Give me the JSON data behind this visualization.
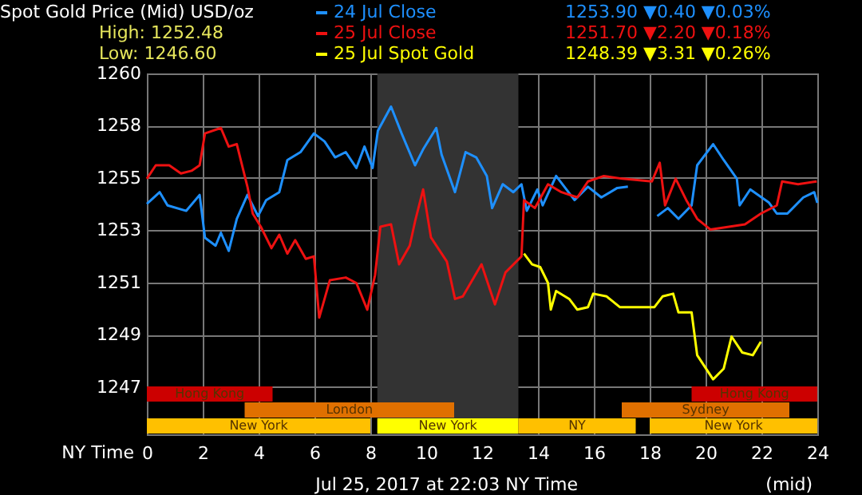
{
  "chart_data": {
    "type": "line",
    "title": "Spot Gold Price (Mid) USD/oz",
    "xlabel": "NY Time",
    "xlim": [
      0,
      24
    ],
    "xticks": [
      0,
      2,
      4,
      6,
      8,
      10,
      12,
      14,
      16,
      18,
      20,
      22,
      24
    ],
    "ylim": [
      1245.1,
      1259.6
    ],
    "yticks": [
      {
        "value": 1247,
        "label": "1247"
      },
      {
        "value": 1249.1,
        "label": "1249"
      },
      {
        "value": 1251.2,
        "label": "1251"
      },
      {
        "value": 1253.3,
        "label": "1253"
      },
      {
        "value": 1255.4,
        "label": "1255"
      },
      {
        "value": 1257.5,
        "label": "1258"
      },
      {
        "value": 1259.6,
        "label": "1260"
      }
    ],
    "grid": true,
    "legend": "top",
    "marker": "none",
    "line_style": "solid",
    "series": [
      {
        "name": "24 Jul Close",
        "color": "#1e90ff",
        "x": [
          0,
          0.46,
          0.74,
          1.41,
          1.89,
          2.08,
          2.46,
          2.65,
          2.93,
          3.22,
          3.6,
          3.98,
          4.27,
          4.74,
          5.03,
          5.5,
          5.98,
          6.36,
          6.74,
          7.12,
          7.5,
          7.79,
          8.08,
          8.27,
          8.74,
          9.12,
          9.6,
          9.89,
          10.36,
          10.55,
          11.03,
          11.41,
          11.79,
          12.17,
          12.36,
          12.74,
          13.12,
          13.41,
          13.6,
          13.98,
          14.17,
          14.65,
          15.31,
          15.79,
          16.27,
          16.84,
          17.22,
          17.7,
          18.27,
          18.65,
          19.03,
          19.5,
          19.7,
          20.27,
          20.65,
          21.12,
          21.22,
          21.6,
          22.27,
          22.55,
          22.93,
          23.5,
          23.89,
          24
        ],
        "values": [
          1254.36,
          1254.83,
          1254.3,
          1254.08,
          1254.72,
          1253.0,
          1252.68,
          1253.2,
          1252.47,
          1253.76,
          1254.72,
          1253.87,
          1254.51,
          1254.83,
          1256.12,
          1256.44,
          1257.19,
          1256.87,
          1256.23,
          1256.44,
          1255.8,
          1256.66,
          1255.8,
          1257.3,
          1258.27,
          1257.19,
          1255.91,
          1256.55,
          1257.41,
          1256.34,
          1254.83,
          1256.44,
          1256.23,
          1255.48,
          1254.19,
          1255.15,
          1254.83,
          1255.15,
          1254.08,
          1254.94,
          1254.3,
          1255.48,
          1254.51,
          1255.05,
          1254.62,
          1255.0,
          1255.05,
          null,
          1253.87,
          1254.19,
          1253.76,
          1254.3,
          1255.91,
          1256.76,
          1256.12,
          1255.37,
          1254.3,
          1254.94,
          1254.41,
          1253.97,
          1253.97,
          1254.62,
          1254.83,
          1254.4
        ]
      },
      {
        "name": "25 Jul Close",
        "color": "#ee1111",
        "x": [
          0,
          0.32,
          0.8,
          1.22,
          1.6,
          1.89,
          2.08,
          2.65,
          2.93,
          3.22,
          3.6,
          3.79,
          4.08,
          4.46,
          4.74,
          5.03,
          5.31,
          5.69,
          5.98,
          6.17,
          6.55,
          7.12,
          7.5,
          7.89,
          8.17,
          8.36,
          8.74,
          9.03,
          9.41,
          9.6,
          9.89,
          10.17,
          10.74,
          11.03,
          11.31,
          11.98,
          12.46,
          12.84,
          13.41,
          13.5,
          13.89,
          14.36,
          14.84,
          15.41,
          15.79,
          16.36,
          17.03,
          18.08,
          18.36,
          18.55,
          18.93,
          19.31,
          19.7,
          20.17,
          20.84,
          21.41,
          21.98,
          22.55,
          22.74,
          23.31,
          23.98
        ],
        "values": [
          1255.37,
          1255.91,
          1255.91,
          1255.58,
          1255.69,
          1255.91,
          1257.19,
          1257.41,
          1256.66,
          1256.76,
          1255.05,
          1253.97,
          1253.44,
          1252.58,
          1253.12,
          1252.36,
          1252.9,
          1252.15,
          1252.25,
          1249.79,
          1251.29,
          1251.4,
          1251.18,
          1250.11,
          1251.5,
          1253.44,
          1253.54,
          1251.93,
          1252.68,
          1253.65,
          1254.94,
          1253.01,
          1252.04,
          1250.54,
          1250.64,
          1251.93,
          1250.32,
          1251.61,
          1252.25,
          1254.51,
          1254.19,
          1255.15,
          1254.83,
          1254.62,
          1255.26,
          1255.48,
          1255.37,
          1255.26,
          1256.01,
          1254.3,
          1255.37,
          1254.51,
          1253.76,
          1253.33,
          1253.44,
          1253.54,
          1253.97,
          1254.3,
          1255.26,
          1255.15,
          1255.26
        ]
      },
      {
        "name": "25 Jul Spot Gold",
        "color": "#ffff00",
        "x": [
          13.5,
          13.79,
          14.08,
          14.36,
          14.46,
          14.65,
          15.12,
          15.41,
          15.79,
          15.98,
          16.46,
          16.93,
          18.17,
          18.46,
          18.84,
          19.03,
          19.5,
          19.7,
          20.27,
          20.65,
          20.93,
          21.31,
          21.69,
          21.98
        ],
        "values": [
          1252.36,
          1251.93,
          1251.82,
          1251.18,
          1250.11,
          1250.86,
          1250.54,
          1250.11,
          1250.21,
          1250.75,
          1250.64,
          1250.21,
          1250.21,
          1250.64,
          1250.75,
          1250.0,
          1250.0,
          1248.28,
          1247.31,
          1247.74,
          1249.03,
          1248.39,
          1248.28,
          1248.82
        ]
      }
    ],
    "bands": [
      {
        "axis": "x",
        "from": 8.25,
        "to": 13.3,
        "color": "#333333"
      },
      {
        "axis": "x",
        "from": 0,
        "to": 4.5,
        "label": "Hong Kong",
        "color": "#cc0000"
      },
      {
        "axis": "x",
        "from": 19.5,
        "to": 24,
        "label": "Hong Kong",
        "color": "#cc0000"
      },
      {
        "axis": "x",
        "from": 3.5,
        "to": 11,
        "label": "London",
        "color": "#e07000"
      },
      {
        "axis": "x",
        "from": 17,
        "to": 23,
        "label": "Sydney",
        "color": "#e07000"
      },
      {
        "axis": "x",
        "from": 0,
        "to": 8,
        "label": "New York",
        "color": "#ffc000"
      },
      {
        "axis": "x",
        "from": 8.25,
        "to": 13.3,
        "label": "New York",
        "color": "#ffff00"
      },
      {
        "axis": "x",
        "from": 13.3,
        "to": 17.5,
        "label": "NY",
        "color": "#ffc000"
      },
      {
        "axis": "x",
        "from": 18,
        "to": 24,
        "label": "New York",
        "color": "#ffc000"
      }
    ],
    "annotations": [
      "High: 1252.48",
      "Low: 1246.60",
      "1253.90 ▼0.40 ▼0.03%",
      "1251.70 ▼2.20 ▼0.18%",
      "1248.39 ▼3.31 ▼0.26%",
      "Jul 25, 2017 at 22:03 NY Time",
      "(mid)"
    ]
  }
}
